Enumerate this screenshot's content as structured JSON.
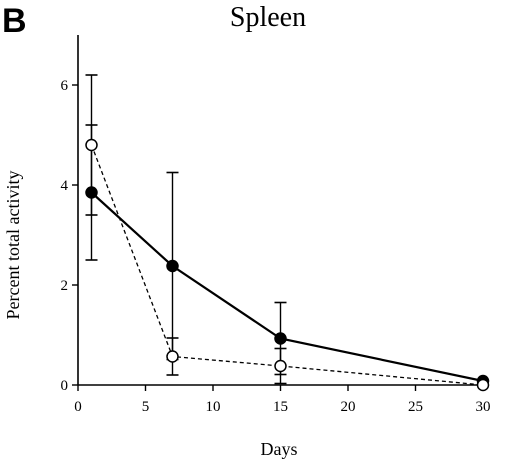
{
  "panel_label": "B",
  "chart_data": {
    "type": "line",
    "title": "Spleen",
    "xlabel": "Days",
    "ylabel": "Percent total activity",
    "xlim": [
      0,
      30
    ],
    "ylim": [
      0,
      7
    ],
    "xticks": [
      0,
      5,
      10,
      15,
      20,
      25,
      30
    ],
    "yticks": [
      0,
      2,
      4,
      6
    ],
    "grid": false,
    "series": [
      {
        "marker": "filled-circle",
        "line_style": "solid",
        "x": [
          1,
          7,
          15,
          30
        ],
        "y": [
          3.85,
          2.38,
          0.93,
          0.08
        ],
        "error": [
          1.35,
          1.87,
          0.72,
          0.0
        ]
      },
      {
        "marker": "open-circle",
        "line_style": "dashed",
        "x": [
          1,
          7,
          15,
          30
        ],
        "y": [
          4.8,
          0.57,
          0.38,
          0.0
        ],
        "error": [
          1.4,
          0.37,
          0.35,
          0.0
        ]
      }
    ]
  }
}
